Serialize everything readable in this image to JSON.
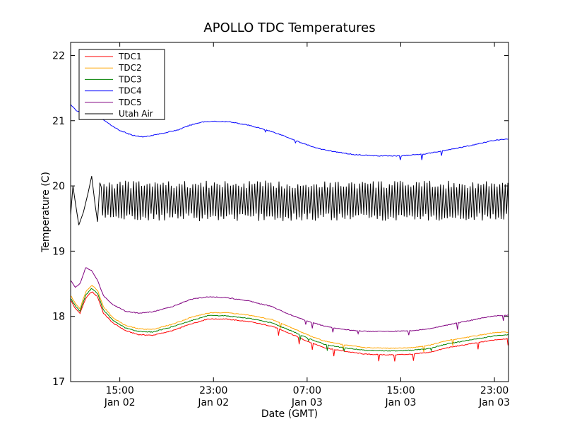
{
  "chart_data": {
    "type": "line",
    "title": "APOLLO TDC Temperatures",
    "xlabel": "Date (GMT)",
    "ylabel": "Temperature (C)",
    "xlim": [
      10.8,
      48.2
    ],
    "ylim": [
      17,
      22.2
    ],
    "x_unit": "hours since Jan 02 00:00 GMT",
    "x_ticks": [
      {
        "value": 15,
        "time": "15:00",
        "date": "Jan 02"
      },
      {
        "value": 23,
        "time": "23:00",
        "date": "Jan 02"
      },
      {
        "value": 31,
        "time": "07:00",
        "date": "Jan 03"
      },
      {
        "value": 39,
        "time": "15:00",
        "date": "Jan 03"
      },
      {
        "value": 47,
        "time": "23:00",
        "date": "Jan 03"
      }
    ],
    "y_ticks": [
      {
        "value": 17,
        "label": "17"
      },
      {
        "value": 18,
        "label": "18"
      },
      {
        "value": 19,
        "label": "19"
      },
      {
        "value": 20,
        "label": "20"
      },
      {
        "value": 21,
        "label": "21"
      },
      {
        "value": 22,
        "label": "22"
      }
    ],
    "legend_position": "top-left",
    "series": [
      {
        "name": "TDC1",
        "color": "#ff0000",
        "points": [
          [
            10.8,
            18.25
          ],
          [
            11.2,
            18.12
          ],
          [
            11.6,
            18.05
          ],
          [
            12.1,
            18.28
          ],
          [
            12.6,
            18.38
          ],
          [
            13.1,
            18.3
          ],
          [
            13.6,
            18.05
          ],
          [
            14.4,
            17.9
          ],
          [
            15.5,
            17.78
          ],
          [
            16.6,
            17.72
          ],
          [
            17.8,
            17.71
          ],
          [
            19.5,
            17.78
          ],
          [
            21,
            17.88
          ],
          [
            22.5,
            17.96
          ],
          [
            24,
            17.96
          ],
          [
            26,
            17.92
          ],
          [
            28,
            17.85
          ],
          [
            29.5,
            17.74
          ],
          [
            31,
            17.62
          ],
          [
            32.5,
            17.52
          ],
          [
            34,
            17.47
          ],
          [
            36,
            17.42
          ],
          [
            38,
            17.41
          ],
          [
            40,
            17.42
          ],
          [
            41.5,
            17.45
          ],
          [
            43,
            17.52
          ],
          [
            45,
            17.58
          ],
          [
            47,
            17.64
          ],
          [
            48.2,
            17.66
          ]
        ]
      },
      {
        "name": "TDC2",
        "color": "#ffa500",
        "points": [
          [
            10.8,
            18.32
          ],
          [
            11.2,
            18.2
          ],
          [
            11.6,
            18.12
          ],
          [
            12.1,
            18.38
          ],
          [
            12.6,
            18.48
          ],
          [
            13.1,
            18.4
          ],
          [
            13.6,
            18.15
          ],
          [
            14.4,
            17.98
          ],
          [
            15.5,
            17.86
          ],
          [
            16.6,
            17.81
          ],
          [
            17.8,
            17.8
          ],
          [
            19.5,
            17.88
          ],
          [
            21,
            17.98
          ],
          [
            22.5,
            18.05
          ],
          [
            24,
            18.06
          ],
          [
            26,
            18.02
          ],
          [
            28,
            17.95
          ],
          [
            29.5,
            17.84
          ],
          [
            31,
            17.72
          ],
          [
            32.5,
            17.62
          ],
          [
            34,
            17.57
          ],
          [
            36,
            17.52
          ],
          [
            38,
            17.51
          ],
          [
            40,
            17.52
          ],
          [
            41.5,
            17.56
          ],
          [
            43,
            17.63
          ],
          [
            45,
            17.69
          ],
          [
            47,
            17.75
          ],
          [
            48.2,
            17.76
          ]
        ]
      },
      {
        "name": "TDC3",
        "color": "#008000",
        "points": [
          [
            10.8,
            18.28
          ],
          [
            11.2,
            18.16
          ],
          [
            11.6,
            18.08
          ],
          [
            12.1,
            18.33
          ],
          [
            12.6,
            18.43
          ],
          [
            13.1,
            18.35
          ],
          [
            13.6,
            18.1
          ],
          [
            14.4,
            17.94
          ],
          [
            15.5,
            17.82
          ],
          [
            16.6,
            17.77
          ],
          [
            17.8,
            17.76
          ],
          [
            19.5,
            17.84
          ],
          [
            21,
            17.93
          ],
          [
            22.5,
            18.01
          ],
          [
            24,
            18.01
          ],
          [
            26,
            17.97
          ],
          [
            28,
            17.9
          ],
          [
            29.5,
            17.79
          ],
          [
            31,
            17.67
          ],
          [
            32.5,
            17.57
          ],
          [
            34,
            17.52
          ],
          [
            36,
            17.48
          ],
          [
            38,
            17.47
          ],
          [
            40,
            17.48
          ],
          [
            41.5,
            17.51
          ],
          [
            43,
            17.58
          ],
          [
            45,
            17.64
          ],
          [
            47,
            17.7
          ],
          [
            48.2,
            17.72
          ]
        ]
      },
      {
        "name": "TDC4",
        "color": "#0000ff",
        "points": [
          [
            10.8,
            21.25
          ],
          [
            11.3,
            21.15
          ],
          [
            11.8,
            21.12
          ],
          [
            12.4,
            21.18
          ],
          [
            13,
            21.1
          ],
          [
            14,
            20.96
          ],
          [
            15,
            20.85
          ],
          [
            16,
            20.78
          ],
          [
            17,
            20.75
          ],
          [
            18.5,
            20.8
          ],
          [
            20,
            20.86
          ],
          [
            21,
            20.93
          ],
          [
            22,
            20.98
          ],
          [
            23,
            20.99
          ],
          [
            24.5,
            20.98
          ],
          [
            26,
            20.93
          ],
          [
            27.5,
            20.86
          ],
          [
            29,
            20.77
          ],
          [
            30.5,
            20.66
          ],
          [
            32,
            20.57
          ],
          [
            33.5,
            20.52
          ],
          [
            35,
            20.48
          ],
          [
            37,
            20.46
          ],
          [
            39,
            20.46
          ],
          [
            41,
            20.49
          ],
          [
            43,
            20.55
          ],
          [
            45,
            20.62
          ],
          [
            47,
            20.7
          ],
          [
            48.2,
            20.72
          ]
        ]
      },
      {
        "name": "TDC5",
        "color": "#800080",
        "points": [
          [
            10.8,
            18.55
          ],
          [
            11.2,
            18.45
          ],
          [
            11.6,
            18.5
          ],
          [
            12.1,
            18.75
          ],
          [
            12.6,
            18.7
          ],
          [
            13.1,
            18.55
          ],
          [
            13.6,
            18.32
          ],
          [
            14.4,
            18.18
          ],
          [
            15.5,
            18.08
          ],
          [
            16.6,
            18.05
          ],
          [
            17.8,
            18.07
          ],
          [
            19.5,
            18.15
          ],
          [
            21,
            18.26
          ],
          [
            22.5,
            18.3
          ],
          [
            24,
            18.29
          ],
          [
            26,
            18.24
          ],
          [
            28,
            18.15
          ],
          [
            29.5,
            18.03
          ],
          [
            31,
            17.93
          ],
          [
            32.5,
            17.85
          ],
          [
            34,
            17.8
          ],
          [
            36,
            17.77
          ],
          [
            38,
            17.77
          ],
          [
            40,
            17.78
          ],
          [
            41.5,
            17.81
          ],
          [
            43,
            17.87
          ],
          [
            45,
            17.94
          ],
          [
            47,
            18.01
          ],
          [
            48.2,
            18.02
          ]
        ]
      },
      {
        "name": "Utah Air",
        "color": "#000000",
        "band": {
          "low": 19.52,
          "high": 20.02,
          "period_hours": 0.23
        },
        "points": [
          [
            10.8,
            19.55
          ],
          [
            11.0,
            20.0
          ],
          [
            11.2,
            19.75
          ],
          [
            11.5,
            19.4
          ],
          [
            11.9,
            19.6
          ],
          [
            12.3,
            19.9
          ],
          [
            12.6,
            20.15
          ],
          [
            12.9,
            19.7
          ],
          [
            13.1,
            19.45
          ],
          [
            13.3,
            20.05
          ],
          [
            48.2,
            19.5
          ]
        ]
      }
    ]
  }
}
